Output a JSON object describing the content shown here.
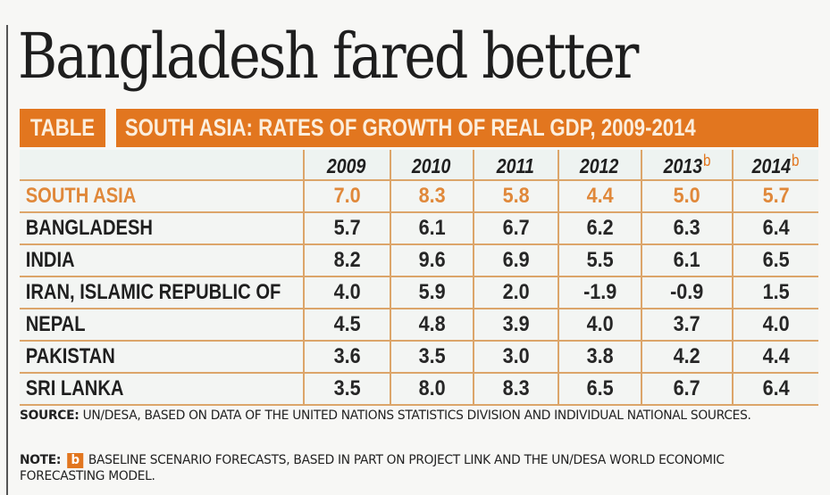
{
  "headline": "Bangladesh fared better",
  "table_label": "TABLE",
  "table_title": "SOUTH ASIA: RATES OF GROWTH OF REAL GDP, 2009-2014",
  "columns": [
    {
      "year": "2009",
      "note": ""
    },
    {
      "year": "2010",
      "note": ""
    },
    {
      "year": "2011",
      "note": ""
    },
    {
      "year": "2012",
      "note": ""
    },
    {
      "year": "2013",
      "note": "b"
    },
    {
      "year": "2014",
      "note": "b"
    }
  ],
  "rows": [
    {
      "name": "SOUTH ASIA",
      "values": [
        "7.0",
        "8.3",
        "5.8",
        "4.4",
        "5.0",
        "5.7"
      ],
      "highlight": true
    },
    {
      "name": "BANGLADESH",
      "values": [
        "5.7",
        "6.1",
        "6.7",
        "6.2",
        "6.3",
        "6.4"
      ]
    },
    {
      "name": "INDIA",
      "values": [
        "8.2",
        "9.6",
        "6.9",
        "5.5",
        "6.1",
        "6.5"
      ]
    },
    {
      "name": "IRAN, ISLAMIC REPUBLIC OF",
      "values": [
        "4.0",
        "5.9",
        "2.0",
        "-1.9",
        "-0.9",
        "1.5"
      ]
    },
    {
      "name": "NEPAL",
      "values": [
        "4.5",
        "4.8",
        "3.9",
        "4.0",
        "3.7",
        "4.0"
      ]
    },
    {
      "name": "PAKISTAN",
      "values": [
        "3.6",
        "3.5",
        "3.0",
        "3.8",
        "4.2",
        "4.4"
      ]
    },
    {
      "name": "SRI LANKA",
      "values": [
        "3.5",
        "8.0",
        "8.3",
        "6.5",
        "6.7",
        "6.4"
      ]
    }
  ],
  "source": {
    "label": "SOURCE:",
    "text": " UN/DESA, BASED ON DATA OF THE UNITED NATIONS STATISTICS DIVISION AND INDIVIDUAL NATIONAL SOURCES."
  },
  "note": {
    "label": "NOTE:",
    "badge": "b",
    "text": "BASELINE SCENARIO FORECASTS, BASED IN PART ON PROJECT LINK AND THE UN/DESA WORLD ECONOMIC FORECASTING MODEL."
  },
  "colors": {
    "accent_orange": "#e2761f",
    "highlight_text": "#e0883a",
    "rule_line": "#dca56a",
    "text": "#1f1f1f"
  },
  "chart_data": {
    "type": "table",
    "title": "SOUTH ASIA: RATES OF GROWTH OF REAL GDP, 2009-2014",
    "columns": [
      "",
      "2009",
      "2010",
      "2011",
      "2012",
      "2013 (b)",
      "2014 (b)"
    ],
    "rows": [
      [
        "SOUTH ASIA",
        7.0,
        8.3,
        5.8,
        4.4,
        5.0,
        5.7
      ],
      [
        "BANGLADESH",
        5.7,
        6.1,
        6.7,
        6.2,
        6.3,
        6.4
      ],
      [
        "INDIA",
        8.2,
        9.6,
        6.9,
        5.5,
        6.1,
        6.5
      ],
      [
        "IRAN, ISLAMIC REPUBLIC OF",
        4.0,
        5.9,
        2.0,
        -1.9,
        -0.9,
        1.5
      ],
      [
        "NEPAL",
        4.5,
        4.8,
        3.9,
        4.0,
        3.7,
        4.0
      ],
      [
        "PAKISTAN",
        3.6,
        3.5,
        3.0,
        3.8,
        4.2,
        4.4
      ],
      [
        "SRI LANKA",
        3.5,
        8.0,
        8.3,
        6.5,
        6.7,
        6.4
      ]
    ]
  }
}
